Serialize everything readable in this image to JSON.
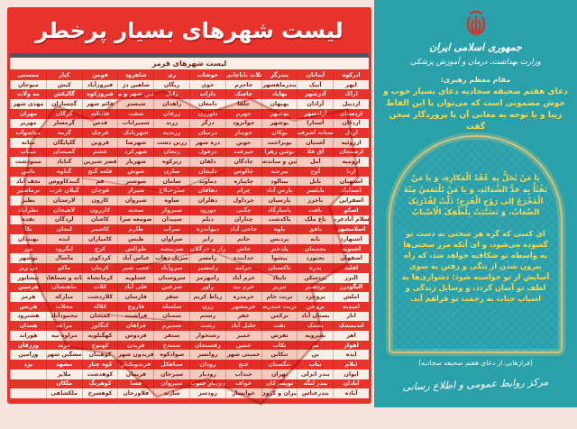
{
  "left_panel": {
    "title": "لیست شهرهای بسیار پرخطر",
    "subtitle": "لیست شهرهای قرمز",
    "columns": [
      [
        "ابرکوه",
        "ابهر",
        "اراک",
        "اردبیل",
        "اردستان",
        "اردکان",
        "اردل",
        "ارزوئیه",
        "ارسنجان",
        "ارومیه",
        "ازنا",
        "استهبان",
        "اسدآباد",
        "اسفراین",
        "اسکو",
        "اسلام آبادغرب",
        "اسلامشهر",
        "اشتهارد",
        "اشنویه",
        "اصفهان",
        "اقلید",
        "البرز",
        "الیگودرز",
        "املش",
        "امیدیه",
        "انار",
        "اندیمشک",
        "اهر",
        "اهواز",
        "ایذه",
        "ایلام",
        "ایوان",
        "آبادان",
        "آباده"
      ],
      [
        "آبدانان",
        "آبیک",
        "آذرشهر",
        "آرادان",
        "آزادشهر",
        "آستارا",
        "آستانه اشرفیه",
        "آشتیان",
        "آق قلا",
        "آمل",
        "آوج",
        "بابل",
        "بابلسر",
        "باخرز",
        "بافت",
        "باغ ملک",
        "بافق",
        "بانه",
        "بجستان",
        "بجنورد",
        "بدره",
        "بردسکن",
        "بردسیر",
        "بروجرد",
        "بروجن",
        "بستان آباد",
        "بستک",
        "بشرویه",
        "بم",
        "بن",
        "بناب",
        "بندر انزلی",
        "بندر لنگه",
        "بندرعباس"
      ],
      [
        "بندرگز",
        "بندرماهشهر",
        "بهاباد",
        "بهبهان",
        "بهشهر",
        "بوشهر",
        "بوکان",
        "بویراحمد",
        "بوئین زهرا",
        "بوئین و میاندشت",
        "بیرجند",
        "بینالود",
        "پارس آباد",
        "پارسیان",
        "پاسارگاد",
        "پاکدشت",
        "پاوه",
        "پردیس",
        "پلدختر",
        "پیشوا",
        "تاکستان",
        "تایباد",
        "تبریز",
        "تربت جام",
        "تربت حیدریه",
        "ترکمن",
        "تفت",
        "تفرش",
        "تکاب",
        "تنکابن",
        "تنگستان",
        "تهران",
        "تویسرکان",
        "تیران و کرون"
      ],
      [
        "ثلاث باباجانی",
        "جاجرم",
        "جاسک",
        "جلفا",
        "جهرم",
        "جوانرود",
        "جویبار",
        "جوین",
        "جیرفت",
        "چادگان",
        "چالوس",
        "چایپاره",
        "چرام",
        "چرداول",
        "چگنی",
        "چناران",
        "حاجی آباد",
        "خاتم",
        "خاش",
        "خدابنده",
        "خرامه",
        "خرم آباد",
        "خرم بید",
        "خرمدره",
        "خرمشهر",
        "خفر",
        "خلیل آباد",
        "خمیر",
        "خمین",
        "خمینی شهر",
        "خنج",
        "خنداب",
        "خواف",
        "خوانسار"
      ],
      [
        "خوشاب",
        "خوی",
        "داراب",
        "دامغان",
        "داورزن",
        "درگز",
        "درمیان",
        "دره شهر",
        "دزفول",
        "دلفان",
        "دلیجان",
        "دماوند",
        "دهاقان",
        "دهلران",
        "دورود",
        "دیلم",
        "دیواندره",
        "رابر",
        "راز و جرگلان",
        "رامسر",
        "رامشیر",
        "رامهرمز",
        "راور",
        "رباط کریم",
        "رزن",
        "رستم",
        "رشت",
        "رشتخوار",
        "رفسنجان",
        "روانسر",
        "رودان",
        "رودبار",
        "رودبار جنوب",
        "رودسر"
      ],
      [
        "ری",
        "ریگان",
        "زابل",
        "زاهدان",
        "زرقان",
        "زرند",
        "زرندیه",
        "زرین دشت",
        "زنجان",
        "زیرکوه",
        "ساری",
        "سامان",
        "ساوجبلاغ",
        "ساوه",
        "سبزوار",
        "سپیدان",
        "سراب",
        "سراوان",
        "سربیشه",
        "سرپل ذهاب",
        "سروآباد",
        "سروستان",
        "سرعین",
        "سقز",
        "سلسله",
        "سمنان",
        "سمیرم",
        "سنقر",
        "سنندج",
        "سوادکوه",
        "سیاهکل",
        "سیرجان",
        "سیروان",
        "شازند"
      ],
      [
        "شاهرود",
        "شاهین دژ",
        "شاهین شهر و میمه",
        "شبستر",
        "شفت",
        "شمیرانات",
        "شهربابک",
        "شهرضا",
        "شهرکرد",
        "شهریار",
        "شوش",
        "شوشتر",
        "شیراز",
        "شیروان",
        "صحنه",
        "صومعه سرا",
        "طارم",
        "طبس",
        "طوالش",
        "عباس آباد",
        "عجب شیر",
        "عسلویه",
        "علی آباد",
        "فارسان",
        "فاروج",
        "فراشبند",
        "فراهان",
        "فردوس",
        "فریدن",
        "فریدون شهر",
        "فریدونکنار",
        "فریمان",
        "فسا",
        "فلاورجان"
      ],
      [
        "فومن",
        "فیروزآباد",
        "فیروزکوه",
        "قائم شهر",
        "قائنات",
        "قدس",
        "قرچک",
        "قزوین",
        "قشم",
        "قصر شیرین",
        "قلعه گنج",
        "قم",
        "قوچان",
        "کارون",
        "کازرون",
        "کاشان",
        "کاشمر",
        "کامیاران",
        "کرج",
        "کردکوی",
        "کرمان",
        "کرمانشاه",
        "کلات",
        "کلاردشت",
        "کلاله",
        "کمیجان",
        "کنگاور",
        "کهگیلویه",
        "کهنوج",
        "کوهبنان",
        "کوه چنار",
        "کوهدشت",
        "کوهرنگ",
        "کوهسرخ"
      ],
      [
        "کیار",
        "کیش",
        "گالیکش",
        "گچساران",
        "گرگان",
        "گرمسار",
        "گرمه",
        "گلپایگان",
        "گمیشان",
        "گناباد",
        "گناوه",
        "گنبدکاووس",
        "گیلان غرب",
        "لارستان",
        "لاهیجان",
        "لردگان",
        "لنجان",
        "لنده",
        "لنگرود",
        "ماسال",
        "ماکو",
        "مانه و سملقان",
        "ماهنشان",
        "مبارکه",
        "محلات",
        "محمودآباد",
        "مراغه",
        "مراوه تپه",
        "مرند",
        "مشگین شهر",
        "مشهد",
        "ملایر",
        "ملکان",
        "ملکشاهی"
      ],
      [
        "ممسنی",
        "منوجان",
        "مه ولات",
        "مهدی شهر",
        "مهران",
        "مهریز",
        "میاندوآب",
        "میانه",
        "میناب",
        "مینودشت",
        "نائین",
        "نجف آباد",
        "نرماشیر",
        "نطنز",
        "نظرآباد",
        "نقده",
        "نکا",
        "نهبندان",
        "نور",
        "نوشهر",
        "نی ریز",
        "نیشابور",
        "هرسین",
        "هرمز",
        "هریس",
        "هشترود",
        "همدان",
        "هوراند",
        "ورزقان",
        "ورامین",
        "یزد",
        "",
        "",
        ""
      ]
    ]
  },
  "right_panel": {
    "country": "جمهوری اسلامی ایران",
    "ministry": "وزارت بهداشت، درمان و آموزش پزشکی",
    "attribution": "مقام معظم رهبری:",
    "intro": "دعای هفتم صحیفه سجادیه دعای بسیار خوب و خوش مضمونی است که می‌توان با این الفاظ زیبا و با توجه به معانی آن با پروردگار سخن گفت",
    "prayer": "یا مَنْ تُحَلُّ بِهِ عُقَدُ الْمَکارِهِ، وَ یا مَنْ یَفْثَأُ بِهِ حَدُّ الشَّدائِدِ، وَ یا مَنْ یُلْتَمَسُ مِنْهُ الْمَخْرَجُ اِلی رَوْحِ الْفَرَجِ؛ ذَلَّتْ لِقُدْرَتِکَ الصِّعابُ، وَ تَسَبَّبَتْ بِلُطْفِکَ الْاَسْبابُ",
    "translation": "ای کسی که گره هر سختی به دست تو گشوده می‌شود، و ای آنکه مرز سختی‌ها به واسطه تو شکافته خواهد شد، که راه بیرون شدن از تنگی و رفتن به سوی آسایش از تو خواسته شود؛ دشواری‌ها به لطف تو آسان گردد، و وسایل زندگی و اسباب حیات به رحمت تو فراهم آید.",
    "source": "(فرازهایی از دعای هفتم صحیفه سجادیه)",
    "signature": "مرکز روابط عمومی و اطلاع رسانی"
  },
  "colors": {
    "red": "#e8332c",
    "teal": "#2aa0ab",
    "gold": "#ffd84d",
    "cream": "#f9efe7",
    "dark_bar": "#55525b",
    "dark_red_text": "#7d1d15",
    "map_pink": "#f6b4aa"
  },
  "icons": {
    "emblem": "iran-allah-emblem"
  }
}
